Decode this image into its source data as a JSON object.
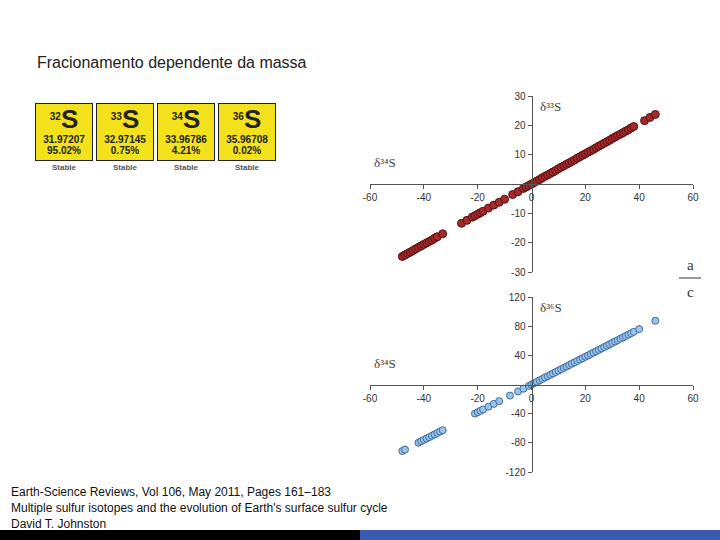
{
  "title": "Fracionamento dependente da massa",
  "isotopes": [
    {
      "mass_number": "32",
      "symbol": "S",
      "mass": "31.97207",
      "abundance": "95.02%",
      "status": "Stable"
    },
    {
      "mass_number": "33",
      "symbol": "S",
      "mass": "32.97145",
      "abundance": "0.75%",
      "status": "Stable"
    },
    {
      "mass_number": "34",
      "symbol": "S",
      "mass": "33.96786",
      "abundance": "4.21%",
      "status": "Stable"
    },
    {
      "mass_number": "36",
      "symbol": "S",
      "mass": "35.96708",
      "abundance": "0.02%",
      "status": "Stable"
    }
  ],
  "panel_label": [
    "a",
    "c"
  ],
  "citation": [
    "Earth-Science Reviews, Vol 106, May 2011, Pages 161–183",
    "Multiple sulfur isotopes and the evolution of Earth's surface sulfur cycle",
    "David T. Johnston"
  ],
  "chart_data": [
    {
      "type": "scatter",
      "x_label": "δ³⁴S",
      "y_label": "δ³³S",
      "color": "#a52a2a",
      "marker": "circle",
      "grid": false,
      "xlim": [
        -60,
        60
      ],
      "ylim": [
        -30,
        30
      ],
      "xticks": [
        -60,
        -40,
        -20,
        0,
        20,
        40,
        60
      ],
      "yticks": [
        -30,
        -20,
        -10,
        10,
        20,
        30
      ],
      "x": [
        -48,
        -47,
        -46,
        -45,
        -44,
        -43,
        -42,
        -41,
        -40,
        -39,
        -38,
        -37,
        -36,
        -35,
        -33,
        -26,
        -24,
        -22,
        -21,
        -20,
        -19,
        -18,
        -16,
        -14,
        -12,
        -10,
        -7,
        -5,
        -3,
        -2,
        -1,
        0,
        1,
        2,
        3,
        4,
        5,
        6,
        7,
        8,
        9,
        10,
        11,
        12,
        13,
        14,
        15,
        16,
        17,
        18,
        19,
        20,
        21,
        22,
        23,
        24,
        25,
        26,
        27,
        28,
        29,
        30,
        31,
        32,
        33,
        34,
        35,
        36,
        37,
        38,
        42,
        44,
        46
      ],
      "values": [
        -24.7,
        -24.2,
        -23.7,
        -23.2,
        -22.7,
        -22.1,
        -21.6,
        -21.1,
        -20.6,
        -20.1,
        -19.6,
        -19.1,
        -18.5,
        -18.0,
        -17.0,
        -13.4,
        -12.4,
        -11.3,
        -10.8,
        -10.3,
        -9.8,
        -9.3,
        -8.2,
        -7.2,
        -6.2,
        -5.2,
        -3.6,
        -2.6,
        -1.5,
        -1.0,
        -0.5,
        0,
        0.5,
        1.0,
        1.5,
        2.1,
        2.6,
        3.1,
        3.6,
        4.1,
        4.6,
        5.2,
        5.7,
        6.2,
        6.7,
        7.2,
        7.7,
        8.2,
        8.8,
        9.3,
        9.8,
        10.3,
        10.8,
        11.3,
        11.8,
        12.4,
        12.9,
        13.4,
        13.9,
        14.4,
        14.9,
        15.5,
        16.0,
        16.5,
        17.0,
        17.5,
        18.0,
        18.5,
        19.1,
        19.6,
        21.6,
        22.7,
        23.7
      ]
    },
    {
      "type": "scatter",
      "x_label": "δ³⁴S",
      "y_label": "δ³⁶S",
      "color": "#9ec3ea",
      "marker": "circle",
      "grid": false,
      "xlim": [
        -60,
        60
      ],
      "ylim": [
        -120,
        120
      ],
      "xticks": [
        -60,
        -40,
        -20,
        0,
        20,
        40,
        60
      ],
      "yticks": [
        -120,
        -80,
        -40,
        40,
        80,
        120
      ],
      "x": [
        -48,
        -47,
        -42,
        -41,
        -40,
        -39,
        -38,
        -37,
        -36,
        -35,
        -34,
        -33,
        -21,
        -20,
        -19,
        -18,
        -16,
        -14,
        -12,
        -8,
        -5,
        -3,
        -1,
        0,
        1,
        2,
        3,
        4,
        5,
        6,
        7,
        8,
        9,
        10,
        11,
        12,
        13,
        14,
        15,
        16,
        17,
        18,
        19,
        20,
        21,
        22,
        23,
        24,
        25,
        26,
        27,
        28,
        29,
        30,
        31,
        32,
        33,
        34,
        35,
        36,
        37,
        38,
        40,
        46
      ],
      "values": [
        -91.2,
        -89.3,
        -79.8,
        -77.9,
        -76.0,
        -74.1,
        -72.2,
        -70.3,
        -68.4,
        -66.5,
        -64.6,
        -62.7,
        -39.9,
        -38.0,
        -36.1,
        -34.2,
        -30.4,
        -26.6,
        -22.8,
        -15.2,
        -9.5,
        -5.7,
        -1.9,
        0,
        1.9,
        3.8,
        5.7,
        7.6,
        9.5,
        11.4,
        13.3,
        15.2,
        17.1,
        19.0,
        20.9,
        22.8,
        24.7,
        26.6,
        28.5,
        30.4,
        32.3,
        34.2,
        36.1,
        38.0,
        39.9,
        41.8,
        43.7,
        45.6,
        47.5,
        49.4,
        51.3,
        53.2,
        55.1,
        57.0,
        58.9,
        60.8,
        62.7,
        64.6,
        66.5,
        68.4,
        70.3,
        72.2,
        76.0,
        87.4
      ]
    }
  ]
}
